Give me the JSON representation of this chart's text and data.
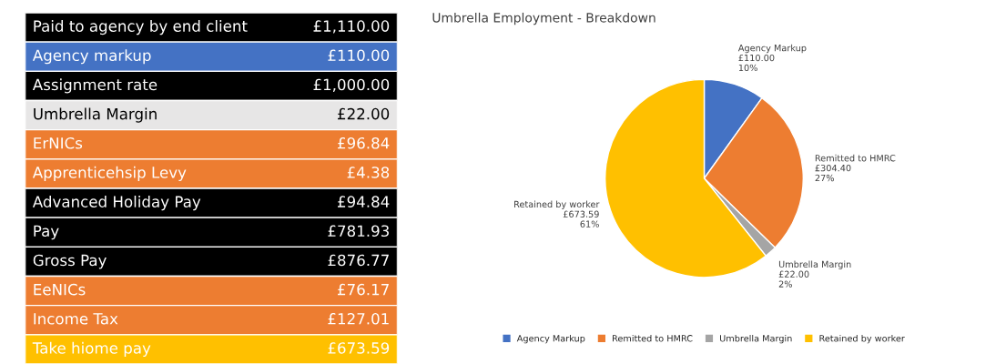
{
  "chart_data": [
    {
      "type": "other",
      "categories": [
        "Paid to agency by end client",
        "Agency markup",
        "Assignment rate",
        "Umbrella Margin",
        "ErNICs",
        "Apprenticehsip Levy",
        "Advanced Holiday Pay",
        "Pay",
        "Gross Pay",
        "EeNICs",
        "Income Tax",
        "Take hiome pay"
      ],
      "values": [
        1110.0,
        110.0,
        1000.0,
        22.0,
        96.84,
        4.38,
        94.84,
        781.93,
        876.77,
        76.17,
        127.01,
        673.59
      ],
      "value_labels": [
        "£1,110.00",
        "£110.00",
        "£1,000.00",
        "£22.00",
        "£96.84",
        "£4.38",
        "£94.84",
        "£781.93",
        "£876.77",
        "£76.17",
        "£127.01",
        "£673.59"
      ],
      "colors": [
        "#000000",
        "#4472c4",
        "#000000",
        "#e7e6e6",
        "#ed7d31",
        "#ed7d31",
        "#000000",
        "#000000",
        "#000000",
        "#ed7d31",
        "#ed7d31",
        "#ffc000"
      ]
    },
    {
      "type": "pie",
      "title": "Umbrella Employment - Breakdown",
      "categories": [
        "Agency Markup",
        "Remitted to HMRC",
        "Umbrella Margin",
        "Retained by worker"
      ],
      "values": [
        110.0,
        304.4,
        22.0,
        673.59
      ],
      "value_labels": [
        "£110.00\n10%",
        "£304.40\n27%",
        "£22.00\n2%",
        "£673.59\n61%"
      ],
      "colors": [
        "#4472c4",
        "#ed7d31",
        "#a5a5a5",
        "#ffc000"
      ],
      "legend": "bottom"
    }
  ]
}
